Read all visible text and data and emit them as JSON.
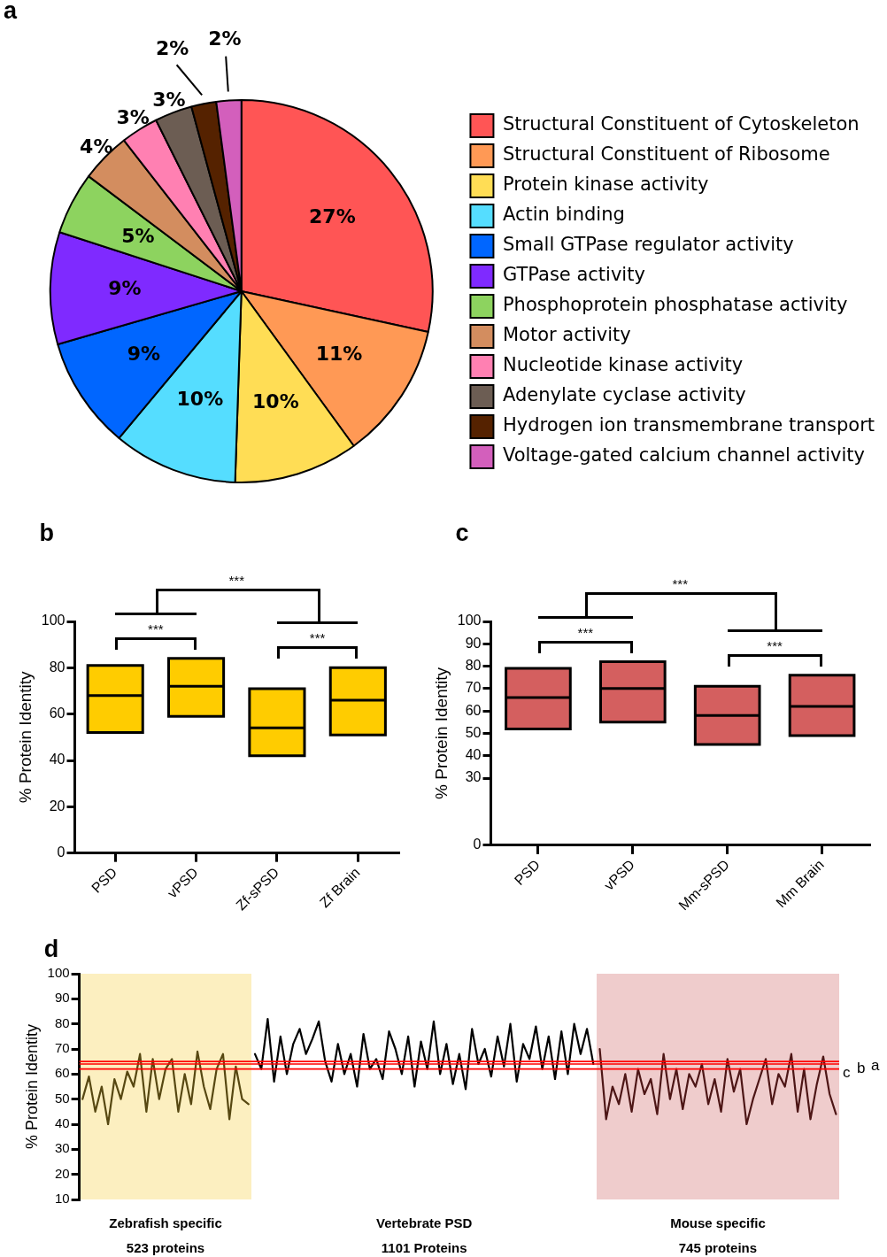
{
  "chart_data": [
    {
      "type": "pie",
      "title": "a",
      "categories": [
        "Structural Constituent of Cytoskeleton",
        "Structural Constituent of Ribosome",
        "Protein kinase activity",
        "Actin binding",
        "Small GTPase regulator activity",
        "GTPase activity",
        "Phosphoprotein phosphatase activity",
        "Motor activity",
        "Nucleotide kinase activity",
        "Adenylate cyclase activity",
        "Hydrogen ion transmembrane transport",
        "Voltage-gated calcium channel activity"
      ],
      "values": [
        27,
        11,
        10,
        10,
        9,
        9,
        5,
        4,
        3,
        3,
        2,
        2
      ],
      "colors": [
        "#ff5555",
        "#ff9955",
        "#ffdd55",
        "#55ddff",
        "#0066ff",
        "#7f2aff",
        "#8dd35f",
        "#d38d5f",
        "#ff80b2",
        "#6c5d53",
        "#552200",
        "#d35fbc"
      ],
      "value_labels": [
        "27%",
        "11%",
        "10%",
        "10%",
        "9%",
        "9%",
        "5%",
        "4%",
        "3%",
        "3%",
        "2%",
        "2%"
      ],
      "legend": "right"
    },
    {
      "type": "box",
      "title": "b",
      "ylabel": "% Protein Identity",
      "categories": [
        "PSD",
        "vPSD",
        "Zf-sPSD",
        "Zf Brain"
      ],
      "color": "#ffcc00",
      "boxes": [
        {
          "q1": 52,
          "median": 68,
          "q3": 81
        },
        {
          "q1": 59,
          "median": 72,
          "q3": 84
        },
        {
          "q1": 42,
          "median": 54,
          "q3": 71
        },
        {
          "q1": 51,
          "median": 66,
          "q3": 80
        }
      ],
      "ylim": [
        0,
        100
      ],
      "yticks": [
        0,
        20,
        40,
        60,
        80,
        100
      ],
      "annotations": [
        "***",
        "***",
        "***"
      ]
    },
    {
      "type": "box",
      "title": "c",
      "ylabel": "% Protein Identity",
      "categories": [
        "PSD",
        "vPSD",
        "Mm-sPSD",
        "Mm Brain"
      ],
      "color": "#d45f5f",
      "boxes": [
        {
          "q1": 52,
          "median": 66,
          "q3": 79
        },
        {
          "q1": 55,
          "median": 70,
          "q3": 82
        },
        {
          "q1": 45,
          "median": 58,
          "q3": 71
        },
        {
          "q1": 49,
          "median": 62,
          "q3": 76
        }
      ],
      "ylim": [
        0,
        100
      ],
      "yticks": [
        0,
        30,
        40,
        50,
        60,
        70,
        80,
        90,
        100
      ],
      "annotations": [
        "***",
        "***",
        "***"
      ]
    },
    {
      "type": "line",
      "title": "d",
      "ylabel": "% Protein Identity",
      "marker": "none",
      "tick_labels": "y",
      "categories": [
        null,
        null,
        null,
        null,
        null,
        null,
        null,
        null,
        null,
        null,
        null,
        null,
        null,
        null,
        null,
        null,
        null,
        null,
        null,
        null,
        null,
        null,
        null,
        null,
        null,
        null,
        null,
        null,
        null,
        null,
        null,
        null,
        null,
        null,
        null,
        null,
        null,
        null,
        null,
        null,
        null,
        null,
        null,
        null,
        null,
        null,
        null,
        null,
        null,
        null,
        null,
        null,
        null,
        null,
        null,
        null,
        null,
        null,
        null,
        null,
        null,
        null,
        null,
        null,
        null,
        null,
        null,
        null,
        null,
        null,
        null,
        null,
        null,
        null,
        null,
        null,
        null,
        null,
        null,
        null,
        null,
        null,
        null,
        null,
        null,
        null,
        null,
        null,
        null,
        null,
        null,
        null,
        null,
        null,
        null,
        null,
        null,
        null,
        null,
        null,
        null,
        null,
        null,
        null,
        null,
        null,
        null,
        null,
        null,
        null,
        null,
        null,
        null,
        null,
        null,
        null,
        null,
        null,
        null
      ],
      "series": [
        {
          "color": "#574812",
          "values": [
            50,
            59,
            45,
            55,
            40,
            58,
            50,
            61,
            55,
            68,
            45,
            66,
            50,
            62,
            66,
            45,
            60,
            48,
            69,
            55,
            46,
            62,
            68,
            42,
            63,
            50,
            48,
            null,
            null,
            null,
            null,
            null,
            null,
            null,
            null,
            null,
            null,
            null,
            null,
            null,
            null,
            null,
            null,
            null,
            null,
            null,
            null,
            null,
            null,
            null,
            null,
            null,
            null,
            null,
            null,
            null,
            null,
            null,
            null,
            null,
            null,
            null,
            null,
            null,
            null,
            null,
            null,
            null,
            null,
            null,
            null,
            null,
            null,
            null,
            null,
            null,
            null,
            null,
            null,
            null,
            null,
            null,
            null,
            null,
            null,
            null,
            null,
            null,
            null,
            null,
            null,
            null,
            null,
            null,
            null,
            null,
            null,
            null,
            null,
            null,
            null,
            null,
            null,
            null,
            null,
            null,
            null,
            null,
            null,
            null,
            null,
            null,
            null,
            null,
            null,
            null,
            null,
            null,
            null
          ]
        },
        {
          "color": "#000000",
          "values": [
            null,
            null,
            null,
            null,
            null,
            null,
            null,
            null,
            null,
            null,
            null,
            null,
            null,
            null,
            null,
            null,
            null,
            null,
            null,
            null,
            null,
            null,
            null,
            null,
            null,
            null,
            null,
            68,
            62,
            82,
            57,
            75,
            60,
            72,
            78,
            68,
            74,
            81,
            65,
            57,
            72,
            60,
            68,
            55,
            76,
            62,
            66,
            58,
            77,
            70,
            60,
            75,
            55,
            73,
            62,
            81,
            60,
            72,
            56,
            68,
            54,
            78,
            64,
            70,
            59,
            75,
            63,
            80,
            57,
            72,
            66,
            79,
            62,
            75,
            58,
            77,
            60,
            80,
            68,
            78,
            64,
            null,
            null,
            null,
            null,
            null,
            null,
            null,
            null,
            null,
            null,
            null,
            null,
            null,
            null,
            null,
            null,
            null,
            null,
            null,
            null,
            null,
            null,
            null,
            null,
            null,
            null,
            null,
            null,
            null,
            null,
            null,
            null,
            null,
            null,
            null,
            null,
            null,
            null
          ]
        },
        {
          "color": "#4d1616",
          "values": [
            null,
            null,
            null,
            null,
            null,
            null,
            null,
            null,
            null,
            null,
            null,
            null,
            null,
            null,
            null,
            null,
            null,
            null,
            null,
            null,
            null,
            null,
            null,
            null,
            null,
            null,
            null,
            null,
            null,
            null,
            null,
            null,
            null,
            null,
            null,
            null,
            null,
            null,
            null,
            null,
            null,
            null,
            null,
            null,
            null,
            null,
            null,
            null,
            null,
            null,
            null,
            null,
            null,
            null,
            null,
            null,
            null,
            null,
            null,
            null,
            null,
            null,
            null,
            null,
            null,
            null,
            null,
            null,
            null,
            null,
            null,
            null,
            null,
            null,
            null,
            null,
            null,
            null,
            null,
            null,
            null,
            70,
            42,
            55,
            48,
            60,
            45,
            62,
            52,
            58,
            44,
            68,
            50,
            62,
            46,
            60,
            55,
            64,
            48,
            58,
            45,
            66,
            53,
            62,
            40,
            50,
            58,
            66,
            48,
            60,
            55,
            68,
            45,
            62,
            42,
            56,
            67,
            52,
            44
          ]
        }
      ],
      "ylim": [
        10,
        100
      ],
      "yticks": [
        10,
        20,
        30,
        40,
        50,
        60,
        70,
        80,
        90,
        100
      ],
      "annotations": [
        "Zebrafish specific\n523 proteins",
        "Vertebrate PSD\n1101 Proteins",
        "Mouse specific\n745 proteins"
      ],
      "ref_lines": [
        {
          "axis": "y",
          "value": 65,
          "label": "a",
          "color": "#ff0000"
        },
        {
          "axis": "y",
          "value": 64,
          "label": "b",
          "color": "#ff0000"
        },
        {
          "axis": "y",
          "value": 62,
          "label": "c",
          "color": "#ff0000"
        }
      ]
    }
  ]
}
